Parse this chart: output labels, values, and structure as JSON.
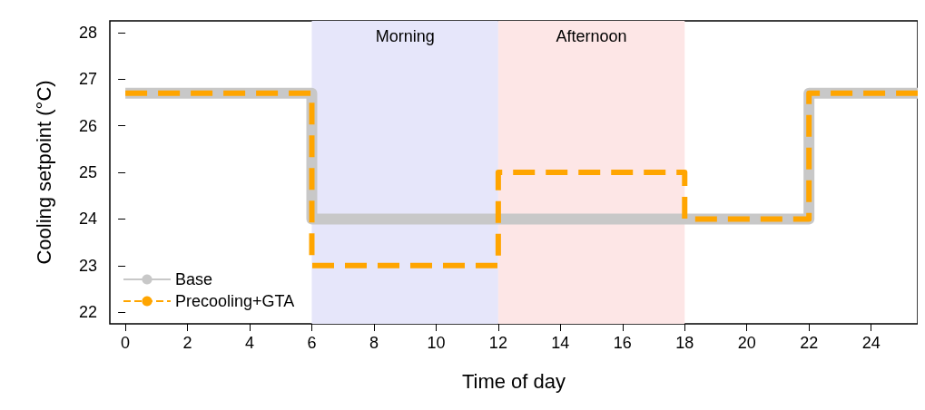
{
  "chart_data": {
    "type": "step",
    "xlabel": "Time of day",
    "ylabel": "Cooling setpoint (°C)",
    "x": [
      0,
      6,
      12,
      18,
      22,
      25.5
    ],
    "series": [
      {
        "name": "Base",
        "color": "#c8c8c8",
        "line_style": "solid",
        "values": [
          26.7,
          24,
          24,
          24,
          26.7,
          26.7
        ]
      },
      {
        "name": "Precooling+GTA",
        "color": "#ffa500",
        "line_style": "dashed",
        "values": [
          26.7,
          23,
          25,
          24,
          26.7,
          26.7
        ]
      }
    ],
    "xlim": [
      -0.5,
      25.5
    ],
    "xticks": [
      0,
      2,
      4,
      6,
      8,
      10,
      12,
      14,
      16,
      18,
      20,
      22,
      24
    ],
    "ylim": [
      21.75,
      28.25
    ],
    "yticks": [
      22,
      23,
      24,
      25,
      26,
      27,
      28
    ],
    "bands": [
      {
        "axis": "x",
        "from": 6,
        "to": 12,
        "label": "Morning",
        "color": "#e6e6fa"
      },
      {
        "axis": "x",
        "from": 12,
        "to": 18,
        "label": "Afternoon",
        "color": "#fde6e6"
      }
    ],
    "grid": false,
    "marker": "none",
    "legend": "bottom left"
  }
}
